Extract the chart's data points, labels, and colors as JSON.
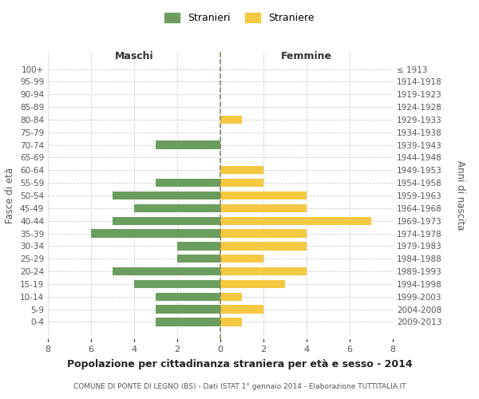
{
  "age_groups": [
    "100+",
    "95-99",
    "90-94",
    "85-89",
    "80-84",
    "75-79",
    "70-74",
    "65-69",
    "60-64",
    "55-59",
    "50-54",
    "45-49",
    "40-44",
    "35-39",
    "30-34",
    "25-29",
    "20-24",
    "15-19",
    "10-14",
    "5-9",
    "0-4"
  ],
  "birth_years": [
    "≤ 1913",
    "1914-1918",
    "1919-1923",
    "1924-1928",
    "1929-1933",
    "1934-1938",
    "1939-1943",
    "1944-1948",
    "1949-1953",
    "1954-1958",
    "1959-1963",
    "1964-1968",
    "1969-1973",
    "1974-1978",
    "1979-1983",
    "1984-1988",
    "1989-1993",
    "1994-1998",
    "1999-2003",
    "2004-2008",
    "2009-2013"
  ],
  "maschi": [
    0,
    0,
    0,
    0,
    0,
    0,
    3,
    0,
    0,
    3,
    5,
    4,
    5,
    6,
    2,
    2,
    5,
    4,
    3,
    3,
    3
  ],
  "femmine": [
    0,
    0,
    0,
    0,
    1,
    0,
    0,
    0,
    2,
    2,
    4,
    4,
    7,
    4,
    4,
    2,
    4,
    3,
    1,
    2,
    1
  ],
  "color_maschi": "#6b9e5e",
  "color_femmine": "#f5c842",
  "background_color": "#ffffff",
  "grid_color": "#cccccc",
  "title": "Popolazione per cittadinanza straniera per età e sesso - 2014",
  "subtitle": "COMUNE DI PONTE DI LEGNO (BS) - Dati ISTAT 1° gennaio 2014 - Elaborazione TUTTITALIA.IT",
  "ylabel_left": "Fasce di età",
  "ylabel_right": "Anni di nascita",
  "xlabel_left": "Maschi",
  "xlabel_right": "Femmine",
  "legend_maschi": "Stranieri",
  "legend_femmine": "Straniere",
  "xlim": 8
}
